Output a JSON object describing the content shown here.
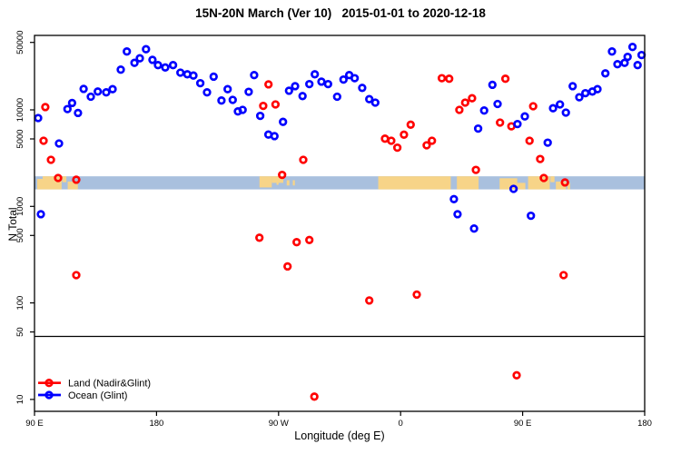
{
  "title": "15N-20N March (Ver 10)   2015-01-01 to 2020-12-18",
  "chart_data": {
    "type": "scatter",
    "title": "15N-20N March (Ver 10)   2015-01-01 to 2020-12-18",
    "xlabel": "Longitude (deg E)",
    "ylabel": "N Total",
    "x_axis": {
      "min": 90,
      "max": 540,
      "ticks": [
        {
          "v": 90,
          "label": "90 E"
        },
        {
          "v": 180,
          "label": "180"
        },
        {
          "v": 270,
          "label": "90 W"
        },
        {
          "v": 360,
          "label": "0"
        },
        {
          "v": 450,
          "label": "90 E"
        },
        {
          "v": 540,
          "label": "180"
        }
      ],
      "note": "longitude axis spans 450 deg, wrapping 90E-180-90W-0-90E-180"
    },
    "y_axis": {
      "scale": "log",
      "min": 10,
      "max": 50000,
      "ticks": [
        10,
        50,
        100,
        500,
        1000,
        5000,
        10000,
        50000
      ]
    },
    "reference_line_n": 45,
    "map_strip": {
      "n_top": 2050,
      "n_bottom": 1500,
      "ocean_color": "#a9c0de",
      "land_color": "#f7d488",
      "land_patches": [
        {
          "from": 92,
          "to": 110,
          "t": 0.2,
          "b": 1
        },
        {
          "from": 96,
          "to": 110,
          "t": 0,
          "b": 0.25
        },
        {
          "from": 110.5,
          "to": 113.5,
          "t": 0,
          "b": 0.45
        },
        {
          "from": 114.5,
          "to": 122,
          "t": 0.4,
          "b": 1
        },
        {
          "from": 255.9,
          "to": 265,
          "t": 0,
          "b": 0.85
        },
        {
          "from": 265,
          "to": 273.5,
          "t": 0,
          "b": 0.5
        },
        {
          "from": 268.5,
          "to": 270,
          "t": 0.35,
          "b": 0.65
        },
        {
          "from": 276,
          "to": 278,
          "t": 0.3,
          "b": 0.7
        },
        {
          "from": 280.5,
          "to": 282,
          "t": 0.3,
          "b": 0.7
        },
        {
          "from": 343.5,
          "to": 397,
          "t": 0,
          "b": 1
        },
        {
          "from": 401.5,
          "to": 417.5,
          "t": 0,
          "b": 1
        },
        {
          "from": 433,
          "to": 446,
          "t": 0.15,
          "b": 1
        },
        {
          "from": 446,
          "to": 452,
          "t": 0.5,
          "b": 1
        },
        {
          "from": 454,
          "to": 470,
          "t": 0,
          "b": 1
        },
        {
          "from": 470.5,
          "to": 473.5,
          "t": 0,
          "b": 0.45
        },
        {
          "from": 474.5,
          "to": 482,
          "t": 0.4,
          "b": 1
        },
        {
          "from": 483,
          "to": 485,
          "t": 0.5,
          "b": 1
        }
      ]
    },
    "series": [
      {
        "name": "Land (Nadir&Glint)",
        "color": "#ff0000",
        "points": [
          [
            98.0,
            10700
          ],
          [
            96.7,
            4790
          ],
          [
            102.1,
            3040
          ],
          [
            107.4,
            1970
          ],
          [
            120.8,
            1890
          ],
          [
            120.8,
            194
          ],
          [
            262.6,
            18400
          ],
          [
            258.7,
            11000
          ],
          [
            267.7,
            11400
          ],
          [
            288.2,
            3040
          ],
          [
            272.6,
            2120
          ],
          [
            255.9,
            474
          ],
          [
            283.3,
            426
          ],
          [
            292.7,
            449
          ],
          [
            276.6,
            239
          ],
          [
            336.9,
            106
          ],
          [
            371.9,
            122
          ],
          [
            348.5,
            5030
          ],
          [
            353.1,
            4790
          ],
          [
            357.6,
            4060
          ],
          [
            362.5,
            5530
          ],
          [
            367.4,
            7030
          ],
          [
            379.2,
            4300
          ],
          [
            383.1,
            4790
          ],
          [
            390.4,
            21300
          ],
          [
            395.8,
            21000
          ],
          [
            403.3,
            10000
          ],
          [
            407.6,
            11900
          ],
          [
            412.7,
            13200
          ],
          [
            415.5,
            2390
          ],
          [
            437.3,
            21000
          ],
          [
            433.3,
            7380
          ],
          [
            441.7,
            6750
          ],
          [
            455.1,
            4790
          ],
          [
            457.8,
            10900
          ],
          [
            462.9,
            3100
          ],
          [
            465.6,
            1970
          ],
          [
            481.2,
            1770
          ],
          [
            480.2,
            194
          ],
          [
            296.4,
            10.7
          ],
          [
            445.6,
            17.8
          ]
        ]
      },
      {
        "name": "Ocean (Glint)",
        "color": "#0000ff",
        "points": [
          [
            92.7,
            8220
          ],
          [
            94.7,
            830
          ],
          [
            108.1,
            4490
          ],
          [
            114.3,
            10200
          ],
          [
            117.7,
            11800
          ],
          [
            122.1,
            9290
          ],
          [
            126.2,
            16500
          ],
          [
            131.5,
            13700
          ],
          [
            136.7,
            15500
          ],
          [
            142.9,
            15200
          ],
          [
            147.6,
            16400
          ],
          [
            153.6,
            26100
          ],
          [
            158.1,
            40300
          ],
          [
            163.7,
            30700
          ],
          [
            167.7,
            34200
          ],
          [
            172.2,
            42500
          ],
          [
            177.0,
            33000
          ],
          [
            181.1,
            29100
          ],
          [
            186.4,
            27500
          ],
          [
            192.2,
            29100
          ],
          [
            197.6,
            24300
          ],
          [
            202.7,
            23400
          ],
          [
            207.2,
            22700
          ],
          [
            212.3,
            18900
          ],
          [
            217.2,
            15200
          ],
          [
            222.1,
            22100
          ],
          [
            227.9,
            12500
          ],
          [
            232.4,
            16400
          ],
          [
            236.2,
            12700
          ],
          [
            240.0,
            9640
          ],
          [
            243.5,
            10000
          ],
          [
            248.0,
            15400
          ],
          [
            252.0,
            22900
          ],
          [
            256.5,
            8670
          ],
          [
            262.5,
            5550
          ],
          [
            267.0,
            5350
          ],
          [
            273.3,
            7510
          ],
          [
            277.7,
            15800
          ],
          [
            282.2,
            17600
          ],
          [
            287.7,
            13900
          ],
          [
            292.7,
            18500
          ],
          [
            296.7,
            23400
          ],
          [
            301.6,
            19600
          ],
          [
            306.5,
            18500
          ],
          [
            313.2,
            13700
          ],
          [
            317.9,
            20600
          ],
          [
            322.1,
            22900
          ],
          [
            326.1,
            21300
          ],
          [
            331.7,
            16900
          ],
          [
            336.9,
            12900
          ],
          [
            341.3,
            11900
          ],
          [
            417.2,
            6400
          ],
          [
            421.6,
            9840
          ],
          [
            427.7,
            18200
          ],
          [
            431.5,
            11500
          ],
          [
            446.2,
            7130
          ],
          [
            451.6,
            8550
          ],
          [
            468.5,
            4580
          ],
          [
            472.4,
            10400
          ],
          [
            477.5,
            11400
          ],
          [
            481.9,
            9380
          ],
          [
            486.9,
            17600
          ],
          [
            491.8,
            13500
          ],
          [
            496.3,
            14900
          ],
          [
            501.4,
            15500
          ],
          [
            505.2,
            16400
          ],
          [
            511.0,
            23900
          ],
          [
            515.9,
            40300
          ],
          [
            519.9,
            29700
          ],
          [
            525.2,
            30700
          ],
          [
            527.4,
            35400
          ],
          [
            531.0,
            44900
          ],
          [
            534.8,
            29100
          ],
          [
            537.7,
            37000
          ],
          [
            443.3,
            1520
          ],
          [
            399.3,
            1190
          ],
          [
            402.0,
            830
          ],
          [
            414.2,
            590
          ],
          [
            456.1,
            800
          ]
        ]
      }
    ],
    "legend_position": "bottom-left"
  },
  "legend": {
    "items": [
      {
        "label": "Land (Nadir&Glint)",
        "color": "#ff0000"
      },
      {
        "label": "Ocean (Glint)",
        "color": "#0000ff"
      }
    ]
  }
}
